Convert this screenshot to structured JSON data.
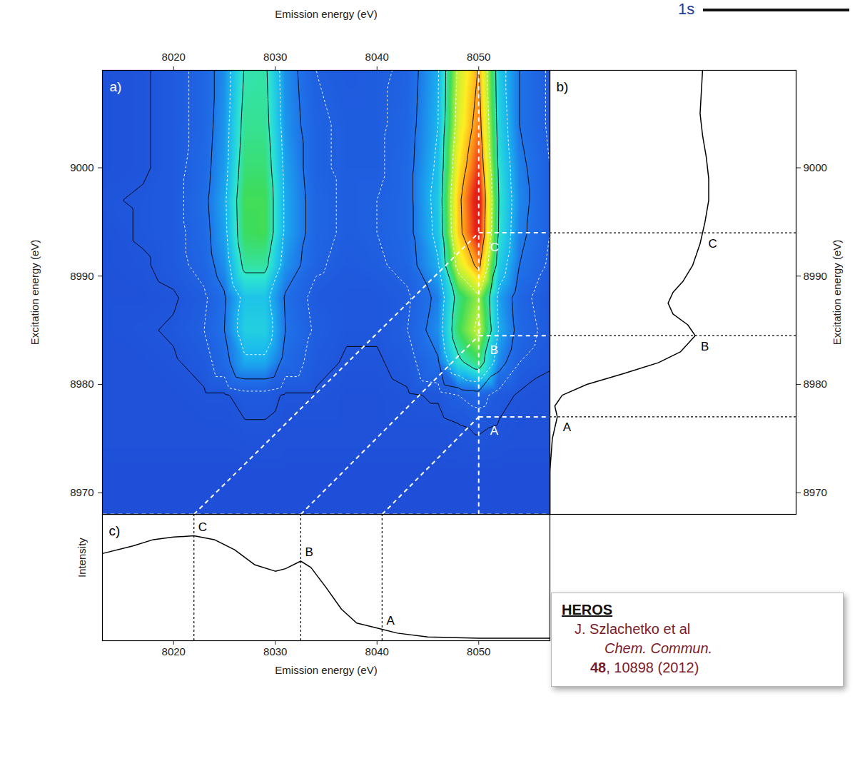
{
  "chart_data": [
    {
      "type": "heatmap",
      "panel": "a)",
      "x_label": "Emission energy (eV)",
      "y_label": "Excitation energy (eV)",
      "x": [
        8013,
        8017,
        8020,
        8023,
        8025,
        8027,
        8029,
        8031,
        8034,
        8037,
        8040,
        8043,
        8046,
        8048,
        8050,
        8052,
        8054,
        8057
      ],
      "y": [
        8968,
        8972,
        8976,
        8979,
        8982,
        8985,
        8988,
        8991,
        8994,
        8997,
        9000,
        9004,
        9009
      ],
      "z": [
        [
          0,
          0,
          0,
          0,
          0,
          0,
          0,
          0,
          0,
          0,
          0,
          0,
          0,
          0,
          0,
          0,
          0,
          0
        ],
        [
          0,
          0,
          0,
          0,
          0,
          0,
          0,
          0,
          0,
          0,
          0,
          0,
          0,
          0,
          0,
          0,
          0,
          0
        ],
        [
          1,
          1,
          1,
          1,
          1,
          2,
          2,
          1,
          1,
          1,
          1,
          1,
          1,
          2,
          3,
          2,
          1,
          1
        ],
        [
          1,
          1,
          1,
          2,
          2,
          4,
          4,
          2,
          2,
          1,
          1,
          2,
          3,
          6,
          8,
          4,
          2,
          1
        ],
        [
          1,
          1,
          2,
          4,
          9,
          20,
          20,
          9,
          4,
          2,
          2,
          4,
          11,
          32,
          42,
          15,
          6,
          3
        ],
        [
          1,
          2,
          3,
          6,
          12,
          28,
          28,
          12,
          5,
          3,
          3,
          6,
          16,
          44,
          58,
          21,
          9,
          4
        ],
        [
          1,
          1,
          2,
          5,
          11,
          25,
          25,
          11,
          4,
          3,
          3,
          5,
          14,
          40,
          53,
          19,
          8,
          3
        ],
        [
          1,
          2,
          4,
          8,
          16,
          38,
          38,
          17,
          7,
          4,
          5,
          8,
          21,
          60,
          79,
          28,
          12,
          5
        ],
        [
          1,
          3,
          4,
          9,
          19,
          44,
          45,
          20,
          8,
          5,
          6,
          9,
          25,
          71,
          93,
          33,
          14,
          6
        ],
        [
          2,
          3,
          4,
          10,
          20,
          45,
          45,
          20,
          8,
          5,
          6,
          9,
          26,
          72,
          95,
          34,
          15,
          6
        ],
        [
          1,
          2,
          4,
          9,
          18,
          42,
          42,
          19,
          7,
          5,
          5,
          9,
          24,
          67,
          88,
          32,
          14,
          6
        ],
        [
          1,
          2,
          4,
          8,
          17,
          39,
          39,
          17,
          7,
          5,
          5,
          8,
          22,
          61,
          81,
          29,
          12,
          5
        ],
        [
          1,
          2,
          4,
          8,
          16,
          36,
          37,
          16,
          6,
          4,
          5,
          7,
          21,
          58,
          76,
          27,
          12,
          5
        ]
      ],
      "zlim": [
        0,
        100
      ],
      "contour_levels": [
        2.5,
        6,
        12,
        22,
        35,
        55,
        75
      ],
      "xlim": [
        8013,
        8057
      ],
      "ylim": [
        8968,
        9009
      ],
      "xticks": [
        8020,
        8030,
        8040,
        8050
      ],
      "yticks": [
        8970,
        8980,
        8990,
        9000
      ],
      "cut_emission": 8050,
      "points": [
        {
          "label": "A",
          "excitation": 8977,
          "emission": 8040.5
        },
        {
          "label": "B",
          "excitation": 8984.5,
          "emission": 8032.5
        },
        {
          "label": "C",
          "excitation": 8994,
          "emission": 8022
        }
      ]
    },
    {
      "type": "line",
      "panel": "b)",
      "y_label": "Excitation energy (eV)",
      "x": [
        0,
        0,
        0.01,
        0.03,
        0.02,
        0.05,
        0.15,
        0.3,
        0.44,
        0.53,
        0.59,
        0.56,
        0.5,
        0.48,
        0.5,
        0.54,
        0.58,
        0.61,
        0.63,
        0.645,
        0.645,
        0.635,
        0.62,
        0.61,
        0.615,
        0.62
      ],
      "y": [
        8968,
        8972,
        8975,
        8977,
        8978,
        8979,
        8980,
        8981,
        8982,
        8983,
        8984.5,
        8985.5,
        8986.5,
        8987.5,
        8988.5,
        8989.5,
        8991,
        8993,
        8995,
        8997,
        8999,
        9001,
        9003,
        9005,
        9007,
        9009
      ],
      "xlim": [
        0,
        1
      ],
      "ylim": [
        8968,
        9009
      ],
      "yticks": [
        8970,
        8980,
        8990,
        9000
      ],
      "tick_labels": "y"
    },
    {
      "type": "line",
      "panel": "c)",
      "x_label": "Emission energy (eV)",
      "y_label": "Intensity",
      "x": [
        8013,
        8016,
        8018,
        8020,
        8022,
        8024,
        8026,
        8028,
        8030,
        8031,
        8032.5,
        8033.5,
        8035,
        8036.5,
        8038,
        8040,
        8042,
        8045,
        8050,
        8057
      ],
      "values": [
        0.69,
        0.75,
        0.8,
        0.82,
        0.83,
        0.8,
        0.72,
        0.6,
        0.55,
        0.57,
        0.63,
        0.58,
        0.42,
        0.25,
        0.14,
        0.1,
        0.06,
        0.03,
        0.02,
        0.02
      ],
      "xlim": [
        8013,
        8057
      ],
      "ylim": [
        0,
        1
      ],
      "xticks": [
        8020,
        8030,
        8040,
        8050
      ],
      "tick_labels": "x"
    }
  ],
  "citation": {
    "heading": "HEROS",
    "authors": "J. Szlachetko et al",
    "journal": "Chem. Commun.",
    "reference": "48, 10898 (2012)"
  },
  "fragment": "1s"
}
